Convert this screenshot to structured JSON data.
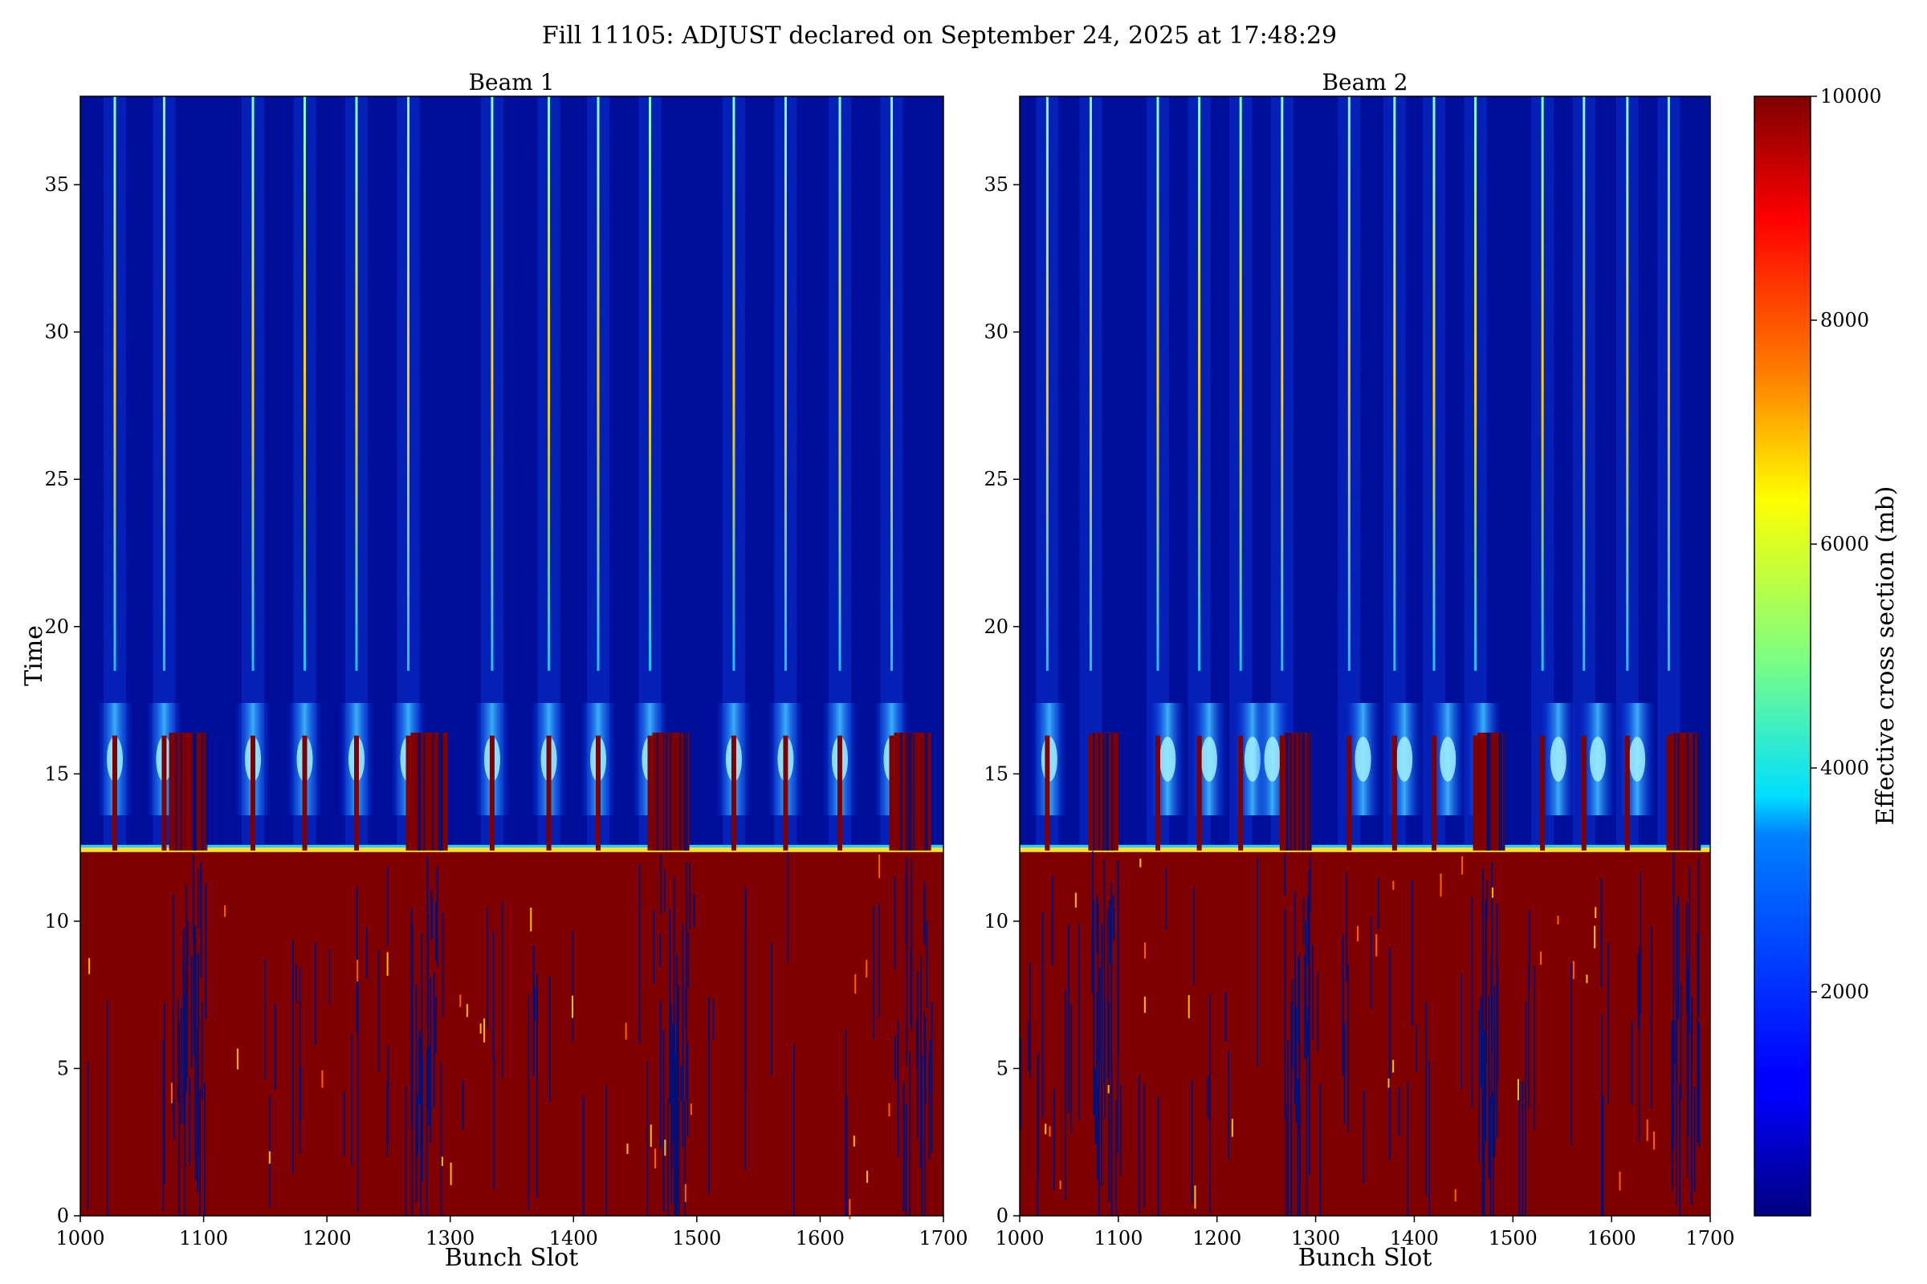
{
  "figure": {
    "title": "Fill 11105: ADJUST declared on September 24, 2025 at 17:48:29"
  },
  "chart_data": [
    {
      "type": "heatmap",
      "title": "Beam 1",
      "xlabel": "Bunch Slot",
      "ylabel": "Time",
      "xlim": [
        1000,
        1700
      ],
      "ylim": [
        0,
        38
      ],
      "xticks": [
        1000,
        1100,
        1200,
        1300,
        1400,
        1500,
        1600,
        1700
      ],
      "yticks": [
        0,
        5,
        10,
        15,
        20,
        25,
        30,
        35
      ],
      "transition_time": 12.4,
      "bright_streak_slots": [
        1028,
        1068,
        1140,
        1182,
        1224,
        1266,
        1334,
        1380,
        1420,
        1462,
        1530,
        1572,
        1616,
        1658
      ],
      "dense_regions": [
        [
          1072,
          1102
        ],
        [
          1268,
          1298
        ],
        [
          1464,
          1494
        ],
        [
          1660,
          1690
        ]
      ],
      "halo_slots": [
        1028,
        1068,
        1140,
        1182,
        1224,
        1266,
        1334,
        1380,
        1420,
        1462,
        1530,
        1572,
        1616,
        1658
      ],
      "halo_time": 15.5,
      "background_level": 200,
      "saturated_level": 10000
    },
    {
      "type": "heatmap",
      "title": "Beam 2",
      "xlabel": "Bunch Slot",
      "ylabel": "",
      "xlim": [
        1000,
        1700
      ],
      "ylim": [
        0,
        38
      ],
      "xticks": [
        1000,
        1100,
        1200,
        1300,
        1400,
        1500,
        1600,
        1700
      ],
      "yticks": [
        0,
        5,
        10,
        15,
        20,
        25,
        30,
        35
      ],
      "transition_time": 12.4,
      "bright_streak_slots": [
        1028,
        1072,
        1140,
        1182,
        1224,
        1266,
        1334,
        1380,
        1420,
        1462,
        1530,
        1572,
        1616,
        1658
      ],
      "dense_regions": [
        [
          1072,
          1100
        ],
        [
          1268,
          1296
        ],
        [
          1464,
          1492
        ],
        [
          1660,
          1690
        ]
      ],
      "halo_slots": [
        1030,
        1150,
        1192,
        1236,
        1256,
        1348,
        1390,
        1434,
        1470,
        1546,
        1586,
        1626
      ],
      "halo_time": 15.5,
      "background_level": 200,
      "saturated_level": 10000
    }
  ],
  "colorbar": {
    "label": "Effective cross section (mb)",
    "range": [
      0,
      10000
    ],
    "ticks": [
      2000,
      4000,
      6000,
      8000,
      10000
    ]
  }
}
